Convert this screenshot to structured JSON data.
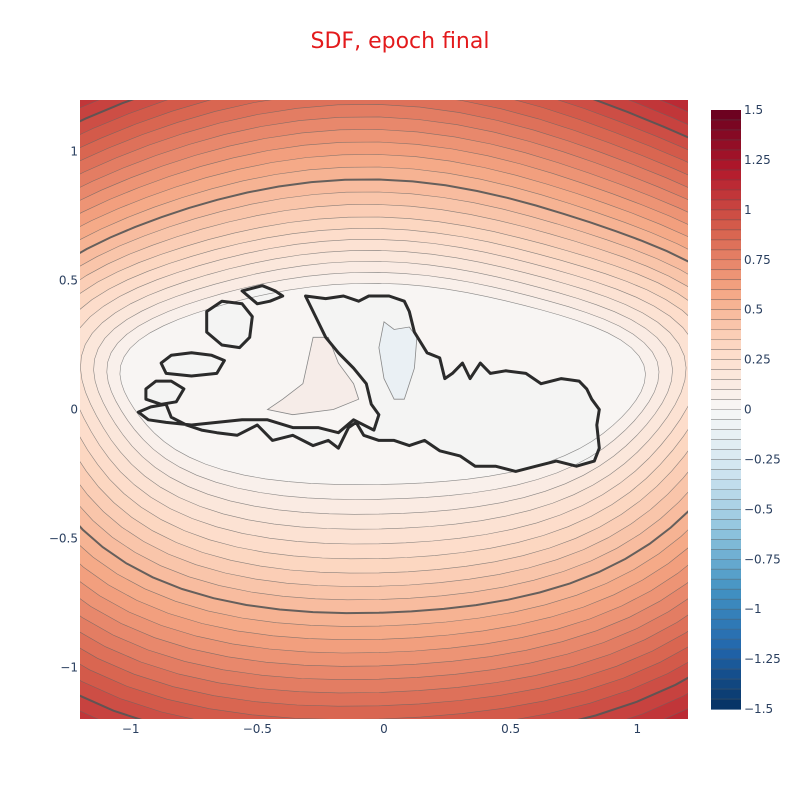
{
  "title": "SDF, epoch final",
  "title_color": "#e31a1c",
  "chart_data": {
    "type": "contour",
    "field": "signed distance function (SDF)",
    "xrange": [
      -1.2,
      1.2
    ],
    "yrange": [
      -1.2,
      1.2
    ],
    "x_ticks": [
      -1,
      -0.5,
      0,
      0.5,
      1
    ],
    "x_tick_labels": [
      "−1",
      "−0.5",
      "0",
      "0.5",
      "1"
    ],
    "y_ticks": [
      1,
      0.5,
      0,
      -0.5,
      -1
    ],
    "y_tick_labels": [
      "1",
      "0.5",
      "0",
      "−0.5",
      "−1"
    ],
    "zrange": [
      -1.5,
      1.5
    ],
    "colorbar_ticks": [
      1.5,
      1.25,
      1,
      0.75,
      0.5,
      0.25,
      0,
      -0.25,
      -0.5,
      -0.75,
      -1,
      -1.25,
      -1.5
    ],
    "colorbar_tick_labels": [
      "1.5",
      "1.25",
      "1",
      "0.75",
      "0.5",
      "0.25",
      "0",
      "−0.25",
      "−0.5",
      "−0.75",
      "−1",
      "−1.25",
      "−1.5"
    ],
    "colorscale": "RdBu (reversed)",
    "contour_step": 0.05,
    "highlighted_levels": [
      0,
      0.5,
      1.0
    ],
    "zero_level_set_shape": "irregular island blob centered near (0,0), spans x≈-0.97..0.85, y≈-0.25..0.45, with small islets on the left",
    "legend": "colorbar right",
    "grid": false
  }
}
